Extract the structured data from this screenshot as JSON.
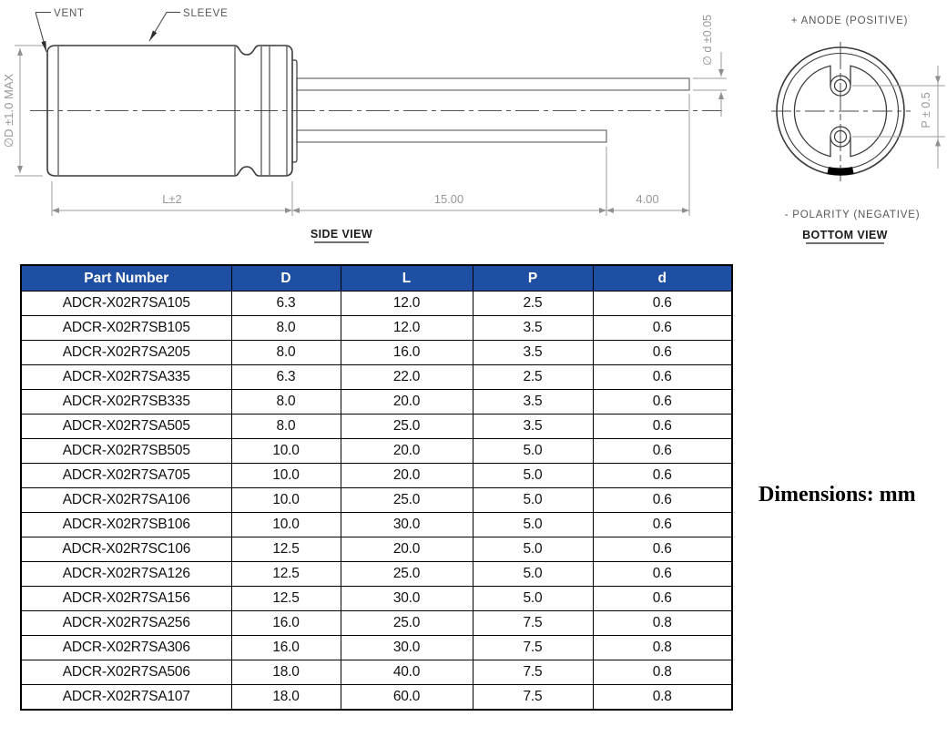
{
  "drawing": {
    "side_view": {
      "vent_label": "VENT",
      "sleeve_label": "SLEEVE",
      "diameter_label": "∅D ±1.0 MAX",
      "body_length_label": "L±2",
      "lead_length_label": "15.00",
      "lead_tip_label": "4.00",
      "lead_diameter_label": "∅ d ±0.05",
      "caption": "SIDE VIEW"
    },
    "bottom_view": {
      "anode_label": "+ ANODE (POSITIVE)",
      "pitch_label": "P ± 0.5",
      "polarity_label": "- POLARITY (NEGATIVE)",
      "caption": "BOTTOM VIEW"
    }
  },
  "units_note": "Dimensions: mm",
  "colors": {
    "header_bg": "#1F4FA2",
    "header_fg": "#FFFFFF",
    "outline": "#3a3a3a",
    "dimension_gray": "#979797"
  },
  "table": {
    "headers": [
      "Part Number",
      "D",
      "L",
      "P",
      "d"
    ],
    "rows": [
      {
        "part": "ADCR-X02R7SA105",
        "D": "6.3",
        "L": "12.0",
        "P": "2.5",
        "d": "0.6"
      },
      {
        "part": "ADCR-X02R7SB105",
        "D": "8.0",
        "L": "12.0",
        "P": "3.5",
        "d": "0.6"
      },
      {
        "part": "ADCR-X02R7SA205",
        "D": "8.0",
        "L": "16.0",
        "P": "3.5",
        "d": "0.6"
      },
      {
        "part": "ADCR-X02R7SA335",
        "D": "6.3",
        "L": "22.0",
        "P": "2.5",
        "d": "0.6"
      },
      {
        "part": "ADCR-X02R7SB335",
        "D": "8.0",
        "L": "20.0",
        "P": "3.5",
        "d": "0.6"
      },
      {
        "part": "ADCR-X02R7SA505",
        "D": "8.0",
        "L": "25.0",
        "P": "3.5",
        "d": "0.6"
      },
      {
        "part": "ADCR-X02R7SB505",
        "D": "10.0",
        "L": "20.0",
        "P": "5.0",
        "d": "0.6"
      },
      {
        "part": "ADCR-X02R7SA705",
        "D": "10.0",
        "L": "20.0",
        "P": "5.0",
        "d": "0.6"
      },
      {
        "part": "ADCR-X02R7SA106",
        "D": "10.0",
        "L": "25.0",
        "P": "5.0",
        "d": "0.6"
      },
      {
        "part": "ADCR-X02R7SB106",
        "D": "10.0",
        "L": "30.0",
        "P": "5.0",
        "d": "0.6"
      },
      {
        "part": "ADCR-X02R7SC106",
        "D": "12.5",
        "L": "20.0",
        "P": "5.0",
        "d": "0.6"
      },
      {
        "part": "ADCR-X02R7SA126",
        "D": "12.5",
        "L": "25.0",
        "P": "5.0",
        "d": "0.6"
      },
      {
        "part": "ADCR-X02R7SA156",
        "D": "12.5",
        "L": "30.0",
        "P": "5.0",
        "d": "0.6"
      },
      {
        "part": "ADCR-X02R7SA256",
        "D": "16.0",
        "L": "25.0",
        "P": "7.5",
        "d": "0.8"
      },
      {
        "part": "ADCR-X02R7SA306",
        "D": "16.0",
        "L": "30.0",
        "P": "7.5",
        "d": "0.8"
      },
      {
        "part": "ADCR-X02R7SA506",
        "D": "18.0",
        "L": "40.0",
        "P": "7.5",
        "d": "0.8"
      },
      {
        "part": "ADCR-X02R7SA107",
        "D": "18.0",
        "L": "60.0",
        "P": "7.5",
        "d": "0.8"
      }
    ]
  }
}
